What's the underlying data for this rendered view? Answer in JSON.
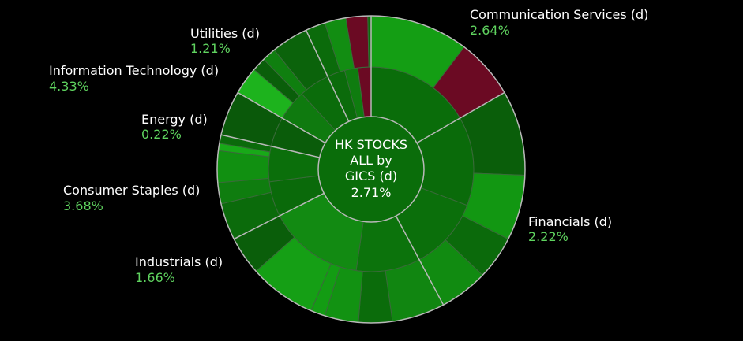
{
  "chart_data": {
    "type": "sunburst",
    "center": {
      "lines": [
        "HK STOCKS",
        "ALL by",
        "GICS (d)",
        "2.71%"
      ]
    },
    "sectors": [
      {
        "name": "Communication Services (d)",
        "value": "2.64%",
        "color": "#139b13"
      },
      {
        "name": "Financials (d)",
        "value": "2.22%",
        "color": "#0a6f0a"
      },
      {
        "name": "Industrials (d)",
        "value": "1.66%",
        "color": "#117f11"
      },
      {
        "name": "Consumer Staples (d)",
        "value": "3.68%",
        "color": "#0a6d0a"
      },
      {
        "name": "Energy (d)",
        "value": "0.22%",
        "color": "#0a5c0a"
      },
      {
        "name": "Information Technology (d)",
        "value": "4.33%",
        "color": "#117a11"
      },
      {
        "name": "Utilities (d)",
        "value": "1.21%",
        "color": "#0b6a0b"
      }
    ]
  }
}
